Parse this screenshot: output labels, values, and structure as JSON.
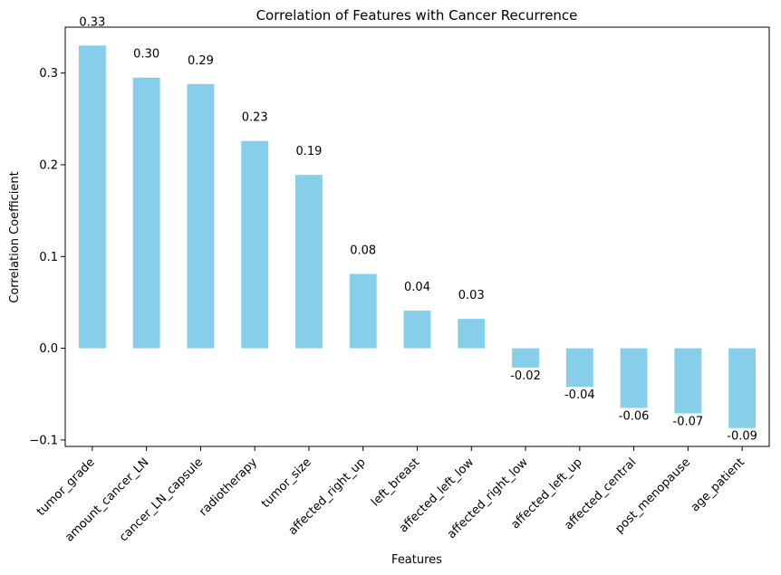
{
  "chart_data": {
    "type": "bar",
    "title": "Correlation of Features with Cancer Recurrence",
    "xlabel": "Features",
    "ylabel": "Correlation Coefficient",
    "categories": [
      "tumor_grade",
      "amount_cancer_LN",
      "cancer_LN_capsule",
      "radiotherapy",
      "tumor_size",
      "affected_right_up",
      "left_breast",
      "affected_left_low",
      "affected_right_low",
      "affected_left_up",
      "affected_central",
      "post_menopause",
      "age_patient"
    ],
    "values": [
      0.33,
      0.295,
      0.288,
      0.226,
      0.189,
      0.081,
      0.041,
      0.032,
      -0.021,
      -0.042,
      -0.065,
      -0.071,
      -0.087
    ],
    "data_labels": [
      "0.33",
      "0.30",
      "0.29",
      "0.23",
      "0.19",
      "0.08",
      "0.04",
      "0.03",
      "-0.02",
      "-0.04",
      "-0.06",
      "-0.07",
      "-0.09"
    ],
    "y_ticks": [
      -0.1,
      0.0,
      0.1,
      0.2,
      0.3
    ],
    "y_tick_labels": [
      "−0.1",
      "0.0",
      "0.1",
      "0.2",
      "0.3"
    ],
    "ylim": [
      -0.107,
      0.35
    ],
    "bar_color": "#87CEEB",
    "grid": false,
    "legend": "none"
  }
}
